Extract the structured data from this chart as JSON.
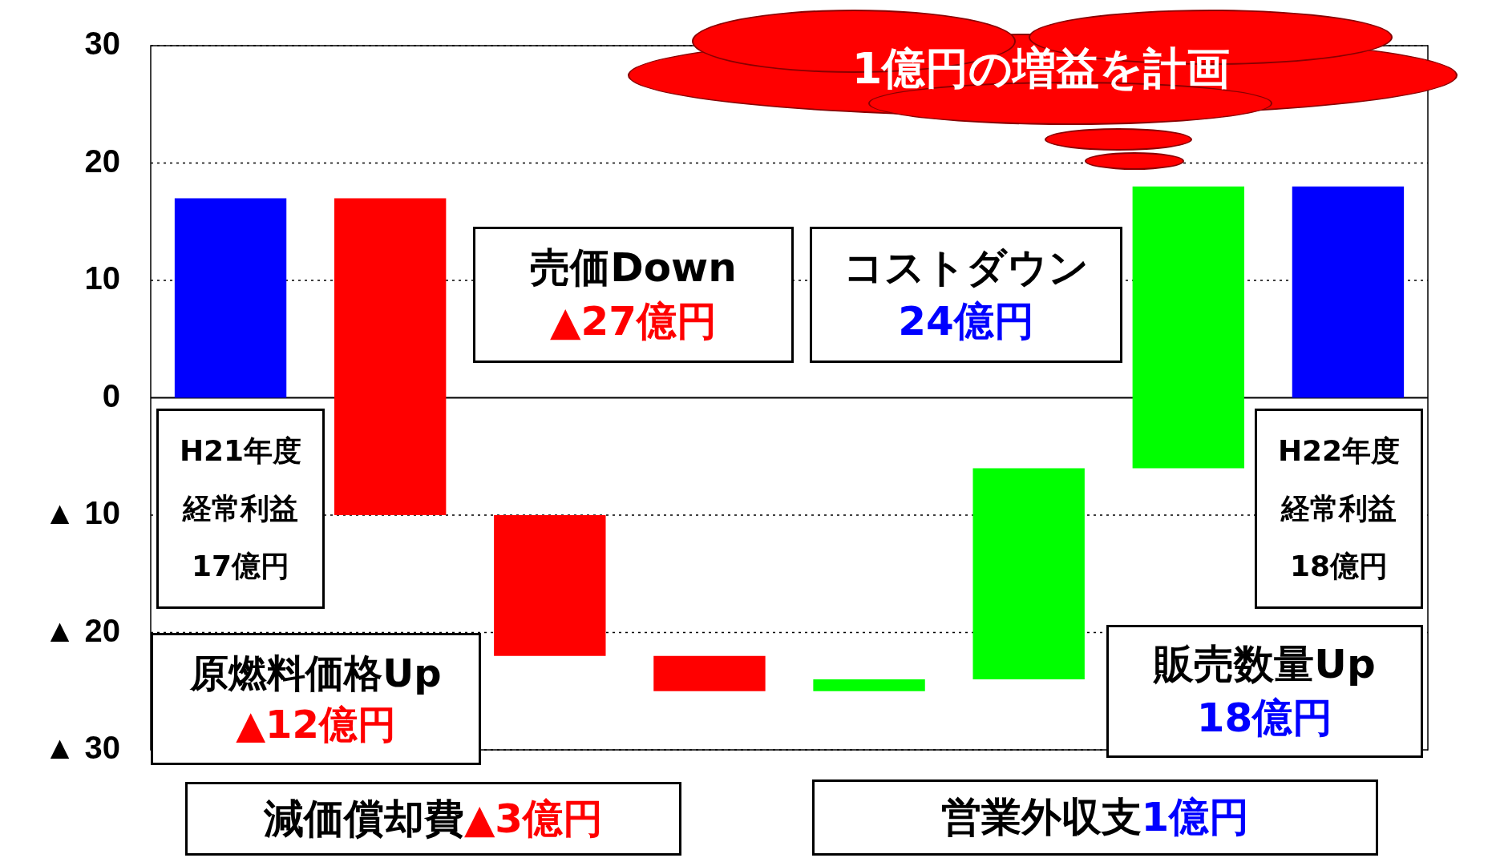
{
  "chart_data": {
    "type": "bar",
    "categories": [
      null,
      null,
      null,
      null,
      null,
      null,
      null,
      null
    ],
    "values": [
      17,
      -27,
      -12,
      -3,
      1,
      18,
      24,
      18
    ],
    "base": [
      0,
      17,
      -10,
      -22,
      -25,
      -24,
      -6,
      0
    ],
    "colors": [
      "#0000ff",
      "#ff0000",
      "#ff0000",
      "#ff0000",
      "#00ff00",
      "#00ff00",
      "#00ff00",
      "#0000ff"
    ],
    "annotations": [
      "H21年度",
      "経常利益",
      "17億円",
      "売価Down",
      "▲27億円",
      "原燃料価格Up",
      "▲12億円",
      "減価償却費",
      "▲3億円",
      "営業外収支",
      "1億円",
      "販売数量Up",
      "18億円",
      "コストダウン",
      "24億円",
      "H22年度",
      "経常利益",
      "18億円",
      "1億円の増益を計画"
    ],
    "ylim": [
      -30,
      30
    ],
    "yticks": [
      30,
      20,
      10,
      0,
      {
        "value": -10,
        "label": "▲ 10"
      },
      {
        "value": -20,
        "label": "▲ 20"
      },
      {
        "value": -30,
        "label": "▲ 30"
      }
    ],
    "grid": "y",
    "legend": false,
    "tick_labels": "y"
  }
}
